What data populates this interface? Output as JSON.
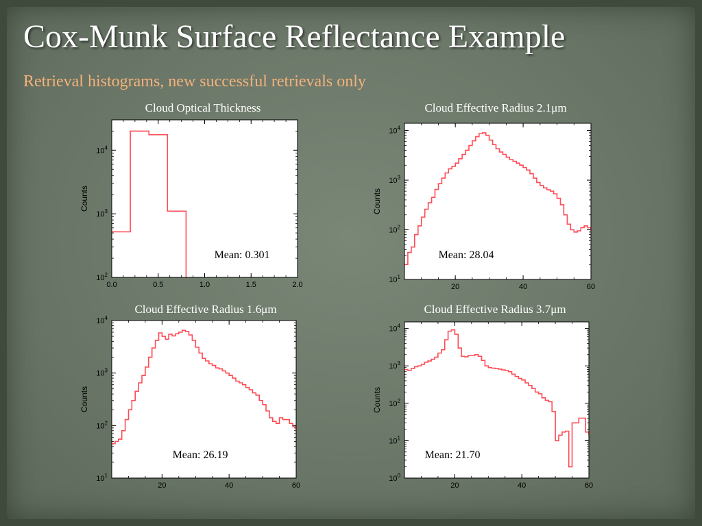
{
  "slide": {
    "title": "Cox-Munk Surface Reflectance Example",
    "subtitle": "Retrieval histograms, new successful retrievals only"
  },
  "colors": {
    "background": "#6b7768",
    "title": "#ffffff",
    "subtitle": "#f6b27a",
    "histogram_line": "#ff4b55",
    "plot_bg": "#ffffff"
  },
  "chart_data": [
    {
      "id": "cot",
      "type": "line",
      "style": "step-histogram",
      "title": "Cloud Optical Thickness",
      "xlabel": "",
      "ylabel": "Counts",
      "yscale": "log",
      "xlim": [
        0,
        2.0
      ],
      "ylim": [
        100,
        30000
      ],
      "xticks": [
        "0.0",
        "0.5",
        "1.0",
        "1.5",
        "2.0"
      ],
      "yticks": [
        {
          "base": "10",
          "exp": "2"
        },
        {
          "base": "10",
          "exp": "3"
        },
        {
          "base": "10",
          "exp": "4"
        }
      ],
      "annotation": "Mean: 0.301",
      "series": [
        {
          "x": [
            0.0,
            0.2,
            0.2,
            0.4,
            0.4,
            0.6,
            0.6,
            0.8,
            0.8
          ],
          "y": [
            520,
            520,
            20000,
            20000,
            17500,
            17500,
            1100,
            1100,
            100
          ]
        }
      ]
    },
    {
      "id": "cer21",
      "type": "line",
      "style": "step-histogram",
      "title": "Cloud Effective Radius 2.1μm",
      "xlabel": "",
      "ylabel": "Counts",
      "yscale": "log",
      "xlim": [
        5,
        60
      ],
      "ylim": [
        10,
        14000
      ],
      "xticks": [
        "20",
        "40",
        "60"
      ],
      "yticks": [
        {
          "base": "10",
          "exp": "1"
        },
        {
          "base": "10",
          "exp": "2"
        },
        {
          "base": "10",
          "exp": "3"
        },
        {
          "base": "10",
          "exp": "4"
        }
      ],
      "annotation": "Mean: 28.04",
      "series": [
        {
          "x": [
            5,
            6,
            7,
            8,
            9,
            10,
            11,
            12,
            13,
            14,
            15,
            16,
            17,
            18,
            19,
            20,
            21,
            22,
            23,
            24,
            25,
            26,
            27,
            28,
            29,
            30,
            31,
            32,
            33,
            34,
            35,
            36,
            37,
            38,
            39,
            40,
            41,
            42,
            43,
            44,
            45,
            46,
            47,
            48,
            49,
            50,
            51,
            52,
            53,
            54,
            55,
            56,
            57,
            58,
            59,
            60
          ],
          "y": [
            20,
            35,
            45,
            80,
            120,
            180,
            260,
            350,
            450,
            650,
            850,
            1100,
            1400,
            1700,
            1900,
            2200,
            2700,
            3300,
            4000,
            5000,
            6200,
            7500,
            8700,
            9000,
            8000,
            6400,
            5200,
            4300,
            3700,
            3300,
            2900,
            2600,
            2400,
            2200,
            2000,
            1800,
            1600,
            1350,
            1100,
            900,
            780,
            700,
            640,
            600,
            530,
            430,
            320,
            200,
            130,
            100,
            90,
            95,
            110,
            120,
            110,
            95
          ]
        }
      ]
    },
    {
      "id": "cer16",
      "type": "line",
      "style": "step-histogram",
      "title": "Cloud Effective Radius 1.6μm",
      "xlabel": "",
      "ylabel": "Counts",
      "yscale": "log",
      "xlim": [
        5,
        60
      ],
      "ylim": [
        10,
        10000
      ],
      "xticks": [
        "20",
        "40",
        "60"
      ],
      "yticks": [
        {
          "base": "10",
          "exp": "1"
        },
        {
          "base": "10",
          "exp": "2"
        },
        {
          "base": "10",
          "exp": "3"
        },
        {
          "base": "10",
          "exp": "4"
        }
      ],
      "annotation": "Mean: 26.19",
      "series": [
        {
          "x": [
            5,
            6,
            7,
            8,
            9,
            10,
            11,
            12,
            13,
            14,
            15,
            16,
            17,
            18,
            19,
            20,
            21,
            22,
            23,
            24,
            25,
            26,
            27,
            28,
            29,
            30,
            31,
            32,
            33,
            34,
            35,
            36,
            37,
            38,
            39,
            40,
            41,
            42,
            43,
            44,
            45,
            46,
            47,
            48,
            49,
            50,
            51,
            52,
            53,
            54,
            55,
            56,
            57,
            58,
            59,
            60
          ],
          "y": [
            45,
            50,
            55,
            80,
            130,
            200,
            300,
            450,
            650,
            900,
            1300,
            2000,
            3000,
            4200,
            5800,
            5000,
            4400,
            5500,
            5100,
            5600,
            6000,
            6500,
            6200,
            5300,
            4200,
            3100,
            2400,
            1900,
            1700,
            1500,
            1400,
            1250,
            1200,
            1100,
            1000,
            900,
            800,
            700,
            650,
            600,
            530,
            480,
            420,
            380,
            300,
            250,
            190,
            140,
            120,
            110,
            140,
            130,
            130,
            110,
            95,
            80
          ]
        }
      ]
    },
    {
      "id": "cer37",
      "type": "line",
      "style": "step-histogram",
      "title": "Cloud Effective Radius 3.7μm",
      "xlabel": "",
      "ylabel": "Counts",
      "yscale": "log",
      "xlim": [
        5,
        60
      ],
      "ylim": [
        1,
        15000
      ],
      "xticks": [
        "20",
        "40",
        "60"
      ],
      "yticks": [
        {
          "base": "10",
          "exp": "0"
        },
        {
          "base": "10",
          "exp": "1"
        },
        {
          "base": "10",
          "exp": "2"
        },
        {
          "base": "10",
          "exp": "3"
        },
        {
          "base": "10",
          "exp": "4"
        }
      ],
      "annotation": "Mean: 21.70",
      "series": [
        {
          "x": [
            5,
            6,
            7,
            8,
            9,
            10,
            11,
            12,
            13,
            14,
            15,
            16,
            17,
            18,
            19,
            20,
            21,
            22,
            23,
            24,
            25,
            26,
            27,
            28,
            29,
            30,
            31,
            32,
            33,
            34,
            35,
            36,
            37,
            38,
            39,
            40,
            41,
            42,
            43,
            44,
            45,
            46,
            47,
            48,
            49,
            50,
            51,
            52,
            53,
            54,
            55,
            56,
            57,
            58,
            59,
            60
          ],
          "y": [
            800,
            750,
            850,
            950,
            1000,
            1100,
            1250,
            1350,
            1500,
            1700,
            2200,
            2700,
            5000,
            8500,
            9200,
            7000,
            3000,
            1800,
            1750,
            1900,
            1900,
            2000,
            1800,
            1400,
            1000,
            900,
            870,
            850,
            820,
            780,
            750,
            700,
            600,
            520,
            460,
            420,
            350,
            300,
            250,
            200,
            180,
            140,
            120,
            110,
            60,
            10,
            14,
            17,
            18,
            2,
            30,
            30,
            40,
            40,
            17,
            14
          ]
        }
      ]
    }
  ]
}
